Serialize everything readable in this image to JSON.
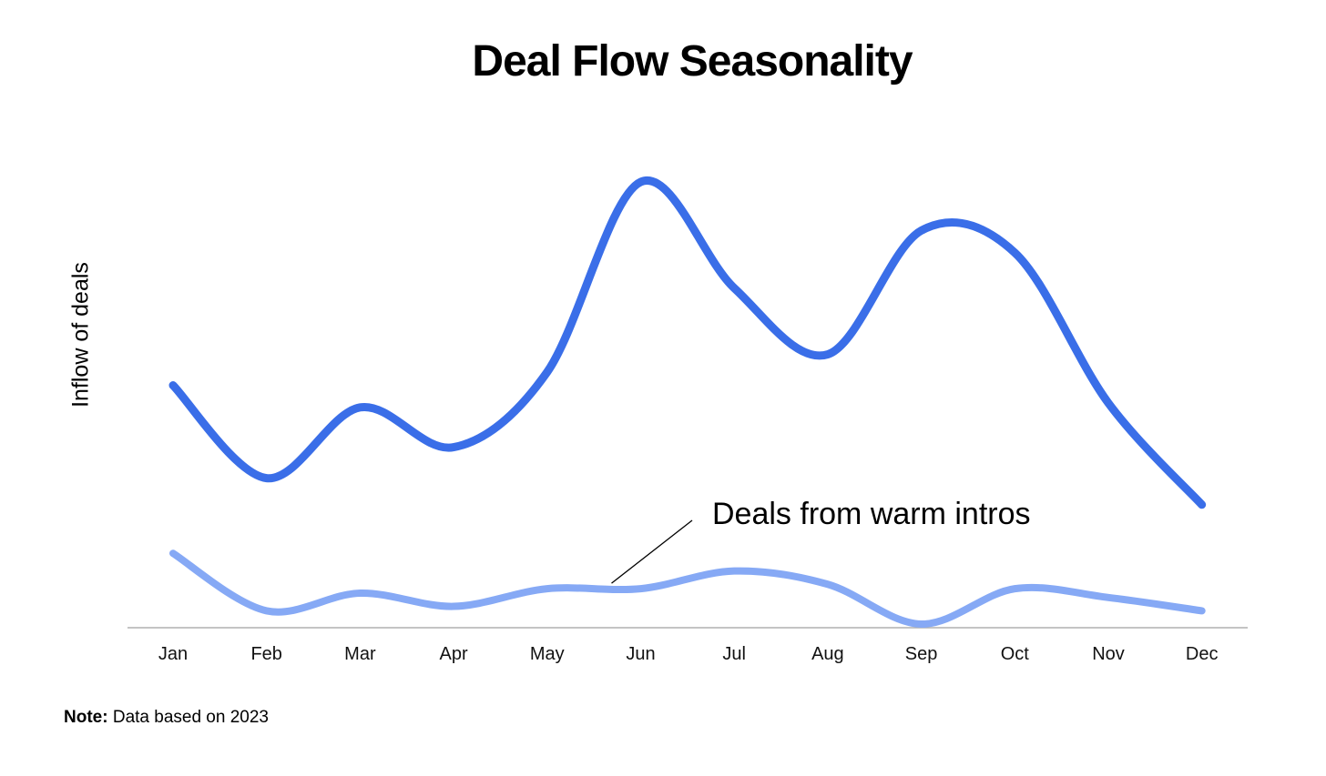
{
  "chart_data": {
    "type": "line",
    "title": "Deal Flow Seasonality",
    "xlabel": "",
    "ylabel": "Inflow of deals",
    "categories": [
      "Jan",
      "Feb",
      "Mar",
      "Apr",
      "May",
      "Jun",
      "Jul",
      "Aug",
      "Sep",
      "Oct",
      "Nov",
      "Dec"
    ],
    "ylim": [
      0,
      100
    ],
    "y_ticks_shown": false,
    "grid": false,
    "legend": "none",
    "series": [
      {
        "values": [
          54,
          33,
          49,
          40,
          57,
          100,
          76,
          61,
          89,
          84,
          50,
          27
        ],
        "color": "#3a6ee8"
      },
      {
        "name": "Deals from warm intros",
        "values": [
          16,
          3,
          7,
          4,
          8,
          8,
          12,
          9,
          0,
          8,
          6,
          3
        ],
        "color": "#86a9f5"
      }
    ],
    "annotation": {
      "text": "Deals from warm intros",
      "series_index": 1,
      "x": "Jun"
    }
  },
  "note": {
    "label": "Note:",
    "text": " Data based on 2023"
  }
}
